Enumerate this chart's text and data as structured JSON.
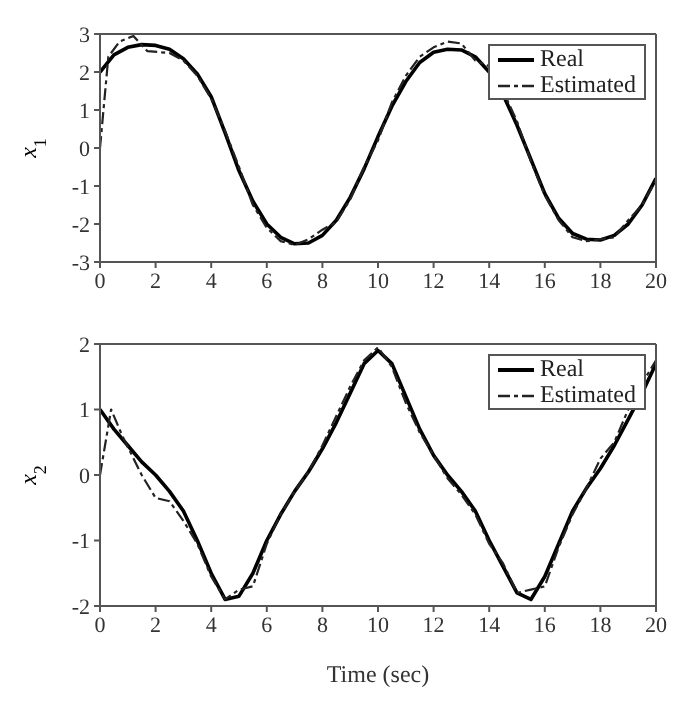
{
  "chart_data": [
    {
      "type": "line",
      "ylabel": "x$_{1}$",
      "xlim": [
        0,
        20
      ],
      "xticks": [
        0,
        2,
        4,
        6,
        8,
        10,
        12,
        14,
        16,
        18,
        20
      ],
      "ylim": [
        -3,
        3
      ],
      "yticks": [
        -3,
        -2,
        -1,
        0,
        1,
        2,
        3
      ],
      "legend": "top right",
      "marker": "none",
      "series": [
        {
          "name": "Real",
          "color": "#000000",
          "line_style": "solid",
          "x": [
            0,
            0.5,
            1,
            1.5,
            2,
            2.5,
            3,
            3.5,
            4,
            4.5,
            5,
            5.5,
            6,
            6.5,
            7,
            7.5,
            8,
            8.5,
            9,
            9.5,
            10,
            10.5,
            11,
            11.5,
            12,
            12.5,
            13,
            13.5,
            14,
            14.5,
            15,
            15.5,
            16,
            16.5,
            17,
            17.5,
            18,
            18.5,
            19,
            19.5,
            20
          ],
          "values": [
            2.0,
            2.45,
            2.65,
            2.72,
            2.7,
            2.6,
            2.35,
            1.95,
            1.35,
            0.4,
            -0.6,
            -1.4,
            -2.0,
            -2.35,
            -2.52,
            -2.5,
            -2.3,
            -1.9,
            -1.3,
            -0.55,
            0.3,
            1.1,
            1.75,
            2.25,
            2.52,
            2.6,
            2.58,
            2.4,
            2.0,
            1.4,
            0.6,
            -0.3,
            -1.2,
            -1.85,
            -2.25,
            -2.4,
            -2.42,
            -2.3,
            -2.0,
            -1.5,
            -0.8
          ]
        },
        {
          "name": "Estimated",
          "color": "#222222",
          "line_style": "dashed",
          "x": [
            0,
            0.3,
            0.7,
            1.2,
            1.7,
            2.5,
            3,
            3.5,
            4,
            4.5,
            5,
            5.5,
            6,
            6.5,
            7,
            7.5,
            8,
            8.5,
            9,
            9.5,
            10,
            10.5,
            11,
            11.5,
            12,
            12.5,
            13,
            13.5,
            14,
            14.5,
            15,
            15.5,
            16,
            16.5,
            17,
            17.5,
            18,
            18.5,
            19,
            19.5,
            20
          ],
          "values": [
            0,
            2.4,
            2.8,
            2.95,
            2.55,
            2.5,
            2.3,
            1.9,
            1.3,
            0.45,
            -0.5,
            -1.5,
            -2.1,
            -2.45,
            -2.55,
            -2.4,
            -2.15,
            -1.95,
            -1.35,
            -0.5,
            0.2,
            1.2,
            1.9,
            2.4,
            2.65,
            2.8,
            2.75,
            2.3,
            2.15,
            1.5,
            0.7,
            -0.35,
            -1.25,
            -1.9,
            -2.35,
            -2.45,
            -2.4,
            -2.35,
            -1.9,
            -1.5,
            -0.85
          ]
        }
      ]
    },
    {
      "type": "line",
      "xlabel": "Time (sec)",
      "ylabel": "x$_{2}$",
      "xlim": [
        0,
        20
      ],
      "xticks": [
        0,
        2,
        4,
        6,
        8,
        10,
        12,
        14,
        16,
        18,
        20
      ],
      "ylim": [
        -2,
        2
      ],
      "yticks": [
        -2,
        -1,
        0,
        1,
        2
      ],
      "legend": "top right",
      "marker": "none",
      "series": [
        {
          "name": "Real",
          "color": "#000000",
          "line_style": "solid",
          "x": [
            0,
            0.5,
            1,
            1.5,
            2,
            2.5,
            3,
            3.5,
            4,
            4.5,
            5,
            5.5,
            6,
            6.5,
            7,
            7.5,
            8,
            8.5,
            9,
            9.5,
            10,
            10.5,
            11,
            11.5,
            12,
            12.5,
            13,
            13.5,
            14,
            14.5,
            15,
            15.5,
            16,
            16.5,
            17,
            17.5,
            18,
            18.5,
            19,
            19.5,
            20
          ],
          "values": [
            1.0,
            0.7,
            0.45,
            0.2,
            0.0,
            -0.25,
            -0.55,
            -1.0,
            -1.5,
            -1.9,
            -1.85,
            -1.5,
            -1.0,
            -0.6,
            -0.25,
            0.05,
            0.4,
            0.8,
            1.25,
            1.7,
            1.9,
            1.7,
            1.2,
            0.7,
            0.3,
            0.0,
            -0.25,
            -0.55,
            -1.0,
            -1.4,
            -1.8,
            -1.9,
            -1.55,
            -1.05,
            -0.55,
            -0.2,
            0.1,
            0.45,
            0.85,
            1.25,
            1.7
          ]
        },
        {
          "name": "Estimated",
          "color": "#222222",
          "line_style": "dashed",
          "x": [
            0,
            0.4,
            0.8,
            1.5,
            2,
            2.5,
            3,
            3.5,
            4,
            4.5,
            5,
            5.5,
            6,
            6.5,
            7,
            7.5,
            8,
            8.5,
            9,
            9.5,
            10,
            10.5,
            11,
            11.5,
            12,
            12.5,
            13,
            13.5,
            14,
            14.5,
            15,
            15.5,
            16,
            16.5,
            17,
            17.5,
            18,
            18.5,
            19,
            19.5,
            20
          ],
          "values": [
            0,
            1.0,
            0.6,
            0.0,
            -0.35,
            -0.4,
            -0.7,
            -1.05,
            -1.55,
            -1.9,
            -1.75,
            -1.7,
            -1.05,
            -0.6,
            -0.25,
            0.05,
            0.45,
            0.9,
            1.35,
            1.75,
            1.95,
            1.65,
            1.1,
            0.65,
            0.3,
            -0.05,
            -0.3,
            -0.6,
            -1.05,
            -1.35,
            -1.8,
            -1.75,
            -1.7,
            -1.1,
            -0.6,
            -0.2,
            0.25,
            0.5,
            1.0,
            1.4,
            1.75
          ]
        }
      ]
    }
  ]
}
